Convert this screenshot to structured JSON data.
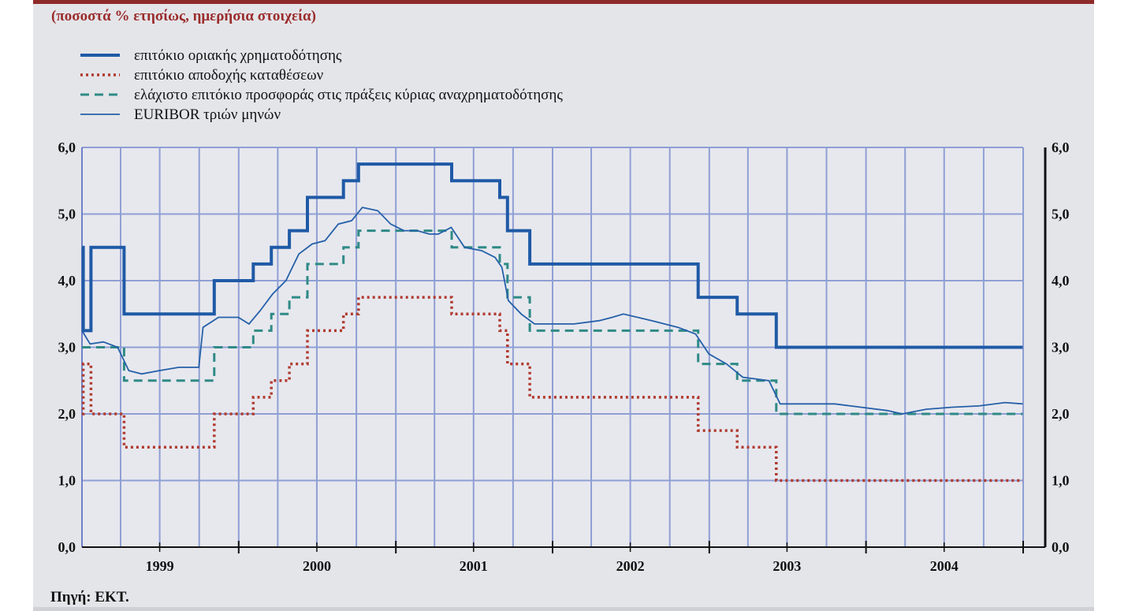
{
  "header": {
    "subtitle": "(ποσοστά % ετησίως, ημερήσια στοιχεία)"
  },
  "footer": {
    "source": "Πηγή: ΕΚΤ."
  },
  "colors": {
    "marginal_lending": "#1f5aa6",
    "deposit_facility": "#b03a2e",
    "mro_minimum_bid": "#2f8a86",
    "euribor_3m": "#2560a8",
    "grid": "#8f9fd4",
    "header_bar": "#8f2a2a",
    "panel_background": "#e4e5e9"
  },
  "chart_data": {
    "type": "line",
    "title": "",
    "xlabel": "",
    "ylabel": "",
    "xlim": [
      "1999-01-01",
      "2004-12-31"
    ],
    "ylim": [
      0,
      6
    ],
    "y_ticks": [
      "0,0",
      "1,0",
      "2,0",
      "3,0",
      "4,0",
      "5,0",
      "6,0"
    ],
    "x_ticks": [
      "1999",
      "2000",
      "2001",
      "2002",
      "2003",
      "2004"
    ],
    "grid": true,
    "legend_position": "top-left",
    "series": [
      {
        "name": "επιτόκιο οριακής χρηματοδότησης",
        "style": "solid-thick",
        "points": [
          [
            "1999-01-01",
            4.5
          ],
          [
            "1999-01-04",
            3.25
          ],
          [
            "1999-01-22",
            4.5
          ],
          [
            "1999-04-09",
            3.5
          ],
          [
            "1999-11-05",
            4.0
          ],
          [
            "2000-02-04",
            4.25
          ],
          [
            "2000-03-17",
            4.5
          ],
          [
            "2000-04-28",
            4.75
          ],
          [
            "2000-06-09",
            5.25
          ],
          [
            "2000-09-01",
            5.5
          ],
          [
            "2000-10-06",
            5.75
          ],
          [
            "2001-05-11",
            5.5
          ],
          [
            "2001-08-31",
            5.25
          ],
          [
            "2001-09-18",
            4.75
          ],
          [
            "2001-11-09",
            4.25
          ],
          [
            "2002-12-06",
            3.75
          ],
          [
            "2003-03-07",
            3.5
          ],
          [
            "2003-06-06",
            3.0
          ],
          [
            "2004-12-31",
            3.0
          ]
        ]
      },
      {
        "name": "επιτόκιο αποδοχής καταθέσεων",
        "style": "dotted",
        "points": [
          [
            "1999-01-01",
            2.0
          ],
          [
            "1999-01-04",
            2.75
          ],
          [
            "1999-01-22",
            2.0
          ],
          [
            "1999-04-09",
            1.5
          ],
          [
            "1999-11-05",
            2.0
          ],
          [
            "2000-02-04",
            2.25
          ],
          [
            "2000-03-17",
            2.5
          ],
          [
            "2000-04-28",
            2.75
          ],
          [
            "2000-06-09",
            3.25
          ],
          [
            "2000-09-01",
            3.5
          ],
          [
            "2000-10-06",
            3.75
          ],
          [
            "2001-05-11",
            3.5
          ],
          [
            "2001-08-31",
            3.25
          ],
          [
            "2001-09-18",
            2.75
          ],
          [
            "2001-11-09",
            2.25
          ],
          [
            "2002-12-06",
            1.75
          ],
          [
            "2003-03-07",
            1.5
          ],
          [
            "2003-06-06",
            1.0
          ],
          [
            "2004-12-31",
            1.0
          ]
        ]
      },
      {
        "name": "ελάχιστο επιτόκιο προσφοράς στις πράξεις κύριας αναχρηματοδότησης",
        "style": "dashed",
        "points": [
          [
            "1999-01-01",
            3.0
          ],
          [
            "1999-04-09",
            2.5
          ],
          [
            "1999-11-05",
            3.0
          ],
          [
            "2000-02-04",
            3.25
          ],
          [
            "2000-03-17",
            3.5
          ],
          [
            "2000-04-28",
            3.75
          ],
          [
            "2000-06-09",
            4.25
          ],
          [
            "2000-09-01",
            4.5
          ],
          [
            "2000-10-06",
            4.75
          ],
          [
            "2001-05-11",
            4.5
          ],
          [
            "2001-08-31",
            4.25
          ],
          [
            "2001-09-18",
            3.75
          ],
          [
            "2001-11-09",
            3.25
          ],
          [
            "2002-12-06",
            2.75
          ],
          [
            "2003-03-07",
            2.5
          ],
          [
            "2003-06-06",
            2.0
          ],
          [
            "2004-12-31",
            2.0
          ]
        ]
      },
      {
        "name": "EURIBOR τριών μηνών",
        "style": "solid-thin",
        "points": [
          [
            "1999-01-01",
            3.25
          ],
          [
            "1999-01-20",
            3.05
          ],
          [
            "1999-02-20",
            3.08
          ],
          [
            "1999-03-25",
            3.0
          ],
          [
            "1999-04-20",
            2.65
          ],
          [
            "1999-05-20",
            2.6
          ],
          [
            "1999-06-30",
            2.65
          ],
          [
            "1999-08-15",
            2.7
          ],
          [
            "1999-09-30",
            2.7
          ],
          [
            "1999-10-10",
            3.3
          ],
          [
            "1999-11-15",
            3.45
          ],
          [
            "1999-12-31",
            3.45
          ],
          [
            "2000-01-25",
            3.35
          ],
          [
            "2000-02-20",
            3.55
          ],
          [
            "2000-03-20",
            3.8
          ],
          [
            "2000-04-20",
            4.0
          ],
          [
            "2000-05-20",
            4.4
          ],
          [
            "2000-06-20",
            4.55
          ],
          [
            "2000-07-20",
            4.6
          ],
          [
            "2000-08-20",
            4.85
          ],
          [
            "2000-09-20",
            4.9
          ],
          [
            "2000-10-15",
            5.1
          ],
          [
            "2000-11-20",
            5.05
          ],
          [
            "2000-12-20",
            4.85
          ],
          [
            "2001-01-20",
            4.75
          ],
          [
            "2001-02-20",
            4.75
          ],
          [
            "2001-03-20",
            4.7
          ],
          [
            "2001-04-10",
            4.7
          ],
          [
            "2001-05-10",
            4.8
          ],
          [
            "2001-06-10",
            4.5
          ],
          [
            "2001-07-20",
            4.45
          ],
          [
            "2001-08-20",
            4.35
          ],
          [
            "2001-09-05",
            4.2
          ],
          [
            "2001-09-20",
            3.7
          ],
          [
            "2001-10-20",
            3.5
          ],
          [
            "2001-11-20",
            3.35
          ],
          [
            "2001-12-31",
            3.35
          ],
          [
            "2002-02-20",
            3.35
          ],
          [
            "2002-04-20",
            3.4
          ],
          [
            "2002-05-20",
            3.45
          ],
          [
            "2002-06-15",
            3.5
          ],
          [
            "2002-08-20",
            3.4
          ],
          [
            "2002-10-20",
            3.3
          ],
          [
            "2002-11-30",
            3.2
          ],
          [
            "2002-12-31",
            2.9
          ],
          [
            "2003-02-10",
            2.75
          ],
          [
            "2003-03-20",
            2.55
          ],
          [
            "2003-05-20",
            2.5
          ],
          [
            "2003-06-15",
            2.15
          ],
          [
            "2003-08-20",
            2.15
          ],
          [
            "2003-10-20",
            2.15
          ],
          [
            "2003-12-20",
            2.1
          ],
          [
            "2004-02-20",
            2.05
          ],
          [
            "2004-03-25",
            2.0
          ],
          [
            "2004-05-20",
            2.07
          ],
          [
            "2004-07-20",
            2.1
          ],
          [
            "2004-09-20",
            2.12
          ],
          [
            "2004-11-20",
            2.17
          ],
          [
            "2004-12-31",
            2.15
          ]
        ]
      }
    ]
  }
}
